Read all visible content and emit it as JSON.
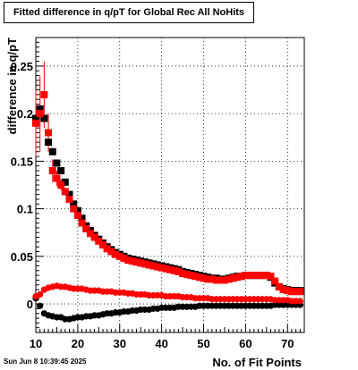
{
  "chart_data": {
    "type": "scatter",
    "title": "Fitted difference in q/pT for Global Rec All NoHits",
    "xlabel": "No. of Fit Points",
    "ylabel": "difference in q/pT",
    "xlim": [
      10,
      74
    ],
    "ylim": [
      -0.03,
      0.28
    ],
    "x_ticks": [
      10,
      20,
      30,
      40,
      50,
      60,
      70
    ],
    "y_ticks": [
      0,
      0.05,
      0.1,
      0.15,
      0.2,
      0.25
    ],
    "x_tick_labels": [
      "10",
      "20",
      "30",
      "40",
      "50",
      "60",
      "70"
    ],
    "y_tick_labels": [
      "0",
      "0.05",
      "0.1",
      "0.15",
      "0.2",
      "0.25"
    ],
    "grid": true,
    "legend": "none",
    "series": [
      {
        "color": "#000000",
        "marker": "square",
        "x": [
          10,
          11,
          12,
          13,
          14,
          15,
          16,
          17,
          18,
          19,
          20,
          21,
          22,
          23,
          24,
          25,
          26,
          27,
          28,
          29,
          30,
          31,
          32,
          33,
          34,
          35,
          36,
          37,
          38,
          39,
          40,
          41,
          42,
          43,
          44,
          45,
          46,
          47,
          48,
          49,
          50,
          51,
          52,
          53,
          54,
          55,
          56,
          57,
          58,
          59,
          60,
          61,
          62,
          63,
          64,
          65,
          66,
          67,
          68,
          69,
          70,
          71,
          72,
          73
        ],
        "y": [
          0.195,
          0.205,
          0.195,
          0.17,
          0.16,
          0.148,
          0.14,
          0.128,
          0.115,
          0.105,
          0.098,
          0.09,
          0.082,
          0.077,
          0.072,
          0.068,
          0.064,
          0.06,
          0.057,
          0.054,
          0.052,
          0.05,
          0.048,
          0.047,
          0.046,
          0.045,
          0.044,
          0.043,
          0.042,
          0.041,
          0.04,
          0.039,
          0.038,
          0.037,
          0.036,
          0.034,
          0.033,
          0.032,
          0.031,
          0.03,
          0.029,
          0.028,
          0.027,
          0.027,
          0.026,
          0.026,
          0.027,
          0.028,
          0.029,
          0.029,
          0.03,
          0.03,
          0.03,
          0.03,
          0.03,
          0.03,
          0.028,
          0.022,
          0.018,
          0.016,
          0.015,
          0.014,
          0.014,
          0.014
        ]
      },
      {
        "color": "#ff0000",
        "marker": "square",
        "x": [
          10,
          11,
          12,
          13,
          14,
          15,
          16,
          17,
          18,
          19,
          20,
          21,
          22,
          23,
          24,
          25,
          26,
          27,
          28,
          29,
          30,
          31,
          32,
          33,
          34,
          35,
          36,
          37,
          38,
          39,
          40,
          41,
          42,
          43,
          44,
          45,
          46,
          47,
          48,
          49,
          50,
          51,
          52,
          53,
          54,
          55,
          56,
          57,
          58,
          59,
          60,
          61,
          62,
          63,
          64,
          65,
          66,
          67,
          68,
          69,
          70,
          71,
          72,
          73
        ],
        "y": [
          0.19,
          0.2,
          0.22,
          0.18,
          0.14,
          0.132,
          0.125,
          0.118,
          0.11,
          0.1,
          0.093,
          0.085,
          0.079,
          0.074,
          0.07,
          0.066,
          0.062,
          0.058,
          0.055,
          0.052,
          0.05,
          0.048,
          0.046,
          0.045,
          0.044,
          0.043,
          0.042,
          0.041,
          0.04,
          0.039,
          0.038,
          0.037,
          0.036,
          0.035,
          0.034,
          0.032,
          0.031,
          0.03,
          0.029,
          0.028,
          0.027,
          0.026,
          0.026,
          0.025,
          0.025,
          0.025,
          0.026,
          0.027,
          0.028,
          0.029,
          0.03,
          0.03,
          0.03,
          0.03,
          0.03,
          0.03,
          0.029,
          0.024,
          0.018,
          0.015,
          0.014,
          0.013,
          0.013,
          0.013
        ],
        "y_err": [
          0.035,
          0.04,
          0.035,
          0.02,
          0.012,
          0.008,
          0.006,
          0.004,
          0.003,
          0.003,
          0.002,
          0.002,
          0.002,
          0.002,
          0.002,
          0.002,
          0.002,
          0.001,
          0.001,
          0.001,
          0.001,
          0.001,
          0.001,
          0.001,
          0.001,
          0.001,
          0.001,
          0.001,
          0.001,
          0.001,
          0.001,
          0.001,
          0.001,
          0.001,
          0.001,
          0.001,
          0.001,
          0.001,
          0.001,
          0.001,
          0.001,
          0.001,
          0.001,
          0.001,
          0.001,
          0.001,
          0.001,
          0.001,
          0.001,
          0.001,
          0.001,
          0.001,
          0.001,
          0.001,
          0.001,
          0.001,
          0.001,
          0.001,
          0.001,
          0.001,
          0.001,
          0.001,
          0.001,
          0.001
        ]
      },
      {
        "color": "#000000",
        "marker": "circle",
        "x": [
          10,
          11,
          12,
          13,
          14,
          15,
          16,
          17,
          18,
          19,
          20,
          21,
          22,
          23,
          24,
          25,
          26,
          27,
          28,
          29,
          30,
          31,
          32,
          33,
          34,
          35,
          36,
          37,
          38,
          39,
          40,
          41,
          42,
          43,
          44,
          45,
          46,
          47,
          48,
          49,
          50,
          51,
          52,
          53,
          54,
          55,
          56,
          57,
          58,
          59,
          60,
          61,
          62,
          63,
          64,
          65,
          66,
          67,
          68,
          69,
          70,
          71,
          72,
          73
        ],
        "y": [
          0.006,
          -0.002,
          -0.01,
          -0.012,
          -0.013,
          -0.014,
          -0.014,
          -0.016,
          -0.016,
          -0.015,
          -0.014,
          -0.014,
          -0.013,
          -0.013,
          -0.012,
          -0.012,
          -0.011,
          -0.01,
          -0.01,
          -0.009,
          -0.009,
          -0.008,
          -0.008,
          -0.007,
          -0.007,
          -0.006,
          -0.006,
          -0.006,
          -0.005,
          -0.005,
          -0.004,
          -0.004,
          -0.004,
          -0.004,
          -0.003,
          -0.003,
          -0.003,
          -0.003,
          -0.003,
          -0.002,
          -0.002,
          -0.002,
          -0.002,
          -0.002,
          -0.002,
          -0.002,
          -0.002,
          -0.002,
          -0.002,
          -0.002,
          -0.002,
          -0.002,
          -0.002,
          -0.002,
          -0.002,
          -0.002,
          -0.002,
          -0.001,
          -0.001,
          -0.001,
          -0.001,
          -0.001,
          -0.001,
          -0.001
        ]
      },
      {
        "color": "#ff0000",
        "marker": "circle",
        "x": [
          10,
          11,
          12,
          13,
          14,
          15,
          16,
          17,
          18,
          19,
          20,
          21,
          22,
          23,
          24,
          25,
          26,
          27,
          28,
          29,
          30,
          31,
          32,
          33,
          34,
          35,
          36,
          37,
          38,
          39,
          40,
          41,
          42,
          43,
          44,
          45,
          46,
          47,
          48,
          49,
          50,
          51,
          52,
          53,
          54,
          55,
          56,
          57,
          58,
          59,
          60,
          61,
          62,
          63,
          64,
          65,
          66,
          67,
          68,
          69,
          70,
          71,
          72,
          73
        ],
        "y": [
          0.008,
          0.01,
          0.015,
          0.017,
          0.018,
          0.019,
          0.018,
          0.018,
          0.017,
          0.016,
          0.016,
          0.016,
          0.015,
          0.014,
          0.014,
          0.014,
          0.013,
          0.013,
          0.013,
          0.012,
          0.012,
          0.012,
          0.011,
          0.011,
          0.01,
          0.01,
          0.01,
          0.009,
          0.009,
          0.009,
          0.009,
          0.008,
          0.008,
          0.008,
          0.008,
          0.007,
          0.007,
          0.007,
          0.006,
          0.006,
          0.006,
          0.006,
          0.005,
          0.005,
          0.005,
          0.005,
          0.005,
          0.005,
          0.005,
          0.005,
          0.005,
          0.005,
          0.005,
          0.005,
          0.005,
          0.005,
          0.005,
          0.004,
          0.004,
          0.004,
          0.004,
          0.003,
          0.003,
          0.003
        ]
      }
    ]
  },
  "timestamp": "Sun Jun  8 10:39:45 2025"
}
